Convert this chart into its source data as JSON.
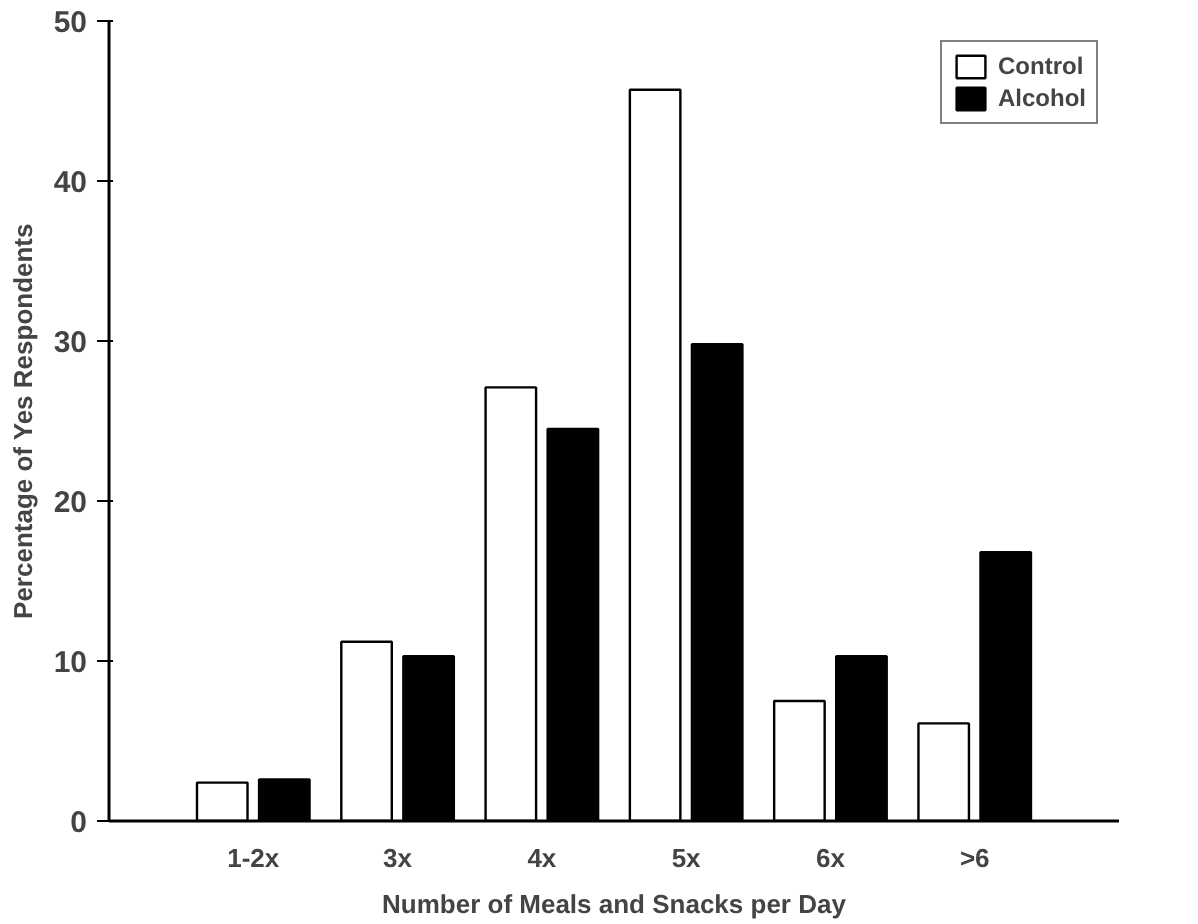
{
  "chart_data": {
    "type": "bar",
    "xlabel": "Number of Meals and Snacks per Day",
    "ylabel": "Percentage of Yes Respondents",
    "categories": [
      "1-2x",
      "3x",
      "4x",
      "5x",
      "6x",
      ">6"
    ],
    "series": [
      {
        "name": "Control",
        "color": "#ffffff",
        "values": [
          2.4,
          11.2,
          27.1,
          45.7,
          7.5,
          6.1
        ]
      },
      {
        "name": "Alcohol",
        "color": "#000000",
        "values": [
          2.6,
          10.3,
          24.5,
          29.8,
          10.3,
          16.8
        ]
      }
    ],
    "ylim": [
      0,
      50
    ],
    "yticks": [
      0,
      10,
      20,
      30,
      40,
      50
    ],
    "grid": false,
    "legend": "top right"
  }
}
